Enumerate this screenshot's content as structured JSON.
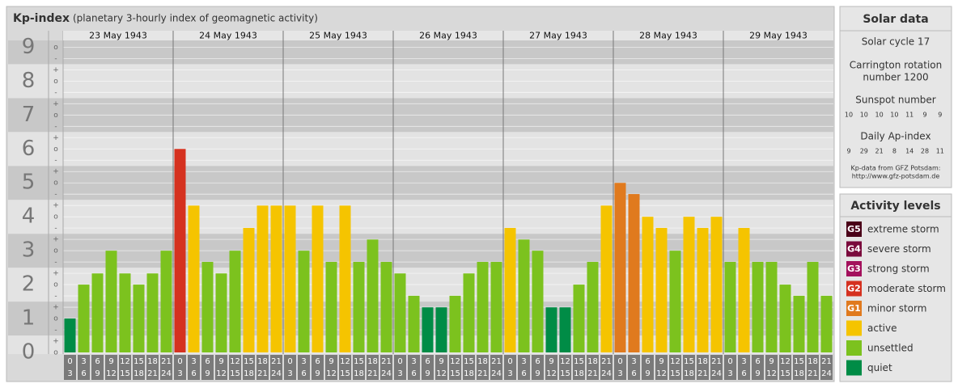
{
  "chart_data": {
    "type": "bar",
    "title": "Kp-index",
    "subtitle": "(planetary 3-hourly index of geomagnetic activity)",
    "days": [
      "23 May 1943",
      "24 May 1943",
      "25 May 1943",
      "26 May 1943",
      "27 May 1943",
      "28 May 1943",
      "29 May 1943"
    ],
    "hours": [
      {
        "from": "0",
        "to": "3"
      },
      {
        "from": "3",
        "to": "6"
      },
      {
        "from": "6",
        "to": "9"
      },
      {
        "from": "9",
        "to": "12"
      },
      {
        "from": "12",
        "to": "15"
      },
      {
        "from": "15",
        "to": "18"
      },
      {
        "from": "18",
        "to": "21"
      },
      {
        "from": "21",
        "to": "24"
      }
    ],
    "values": [
      1,
      2,
      2.33,
      3,
      2.33,
      2,
      2.33,
      3,
      6,
      4.33,
      2.67,
      2.33,
      3,
      3.67,
      4.33,
      4.33,
      4.33,
      3,
      4.33,
      2.67,
      4.33,
      2.67,
      3.33,
      2.67,
      2.33,
      1.67,
      1.33,
      1.33,
      1.67,
      2.33,
      2.67,
      2.67,
      3.67,
      3.33,
      3,
      1.33,
      1.33,
      2,
      2.67,
      4.33,
      5,
      4.67,
      4,
      3.67,
      3,
      4,
      3.67,
      4,
      2.67,
      3.67,
      2.67,
      2.67,
      2,
      1.67,
      2.67,
      1.67
    ],
    "colors": [
      "#008c46",
      "#7cc21e",
      "#7cc21e",
      "#7cc21e",
      "#7cc21e",
      "#7cc21e",
      "#7cc21e",
      "#7cc21e",
      "#d5311f",
      "#f5c400",
      "#7cc21e",
      "#7cc21e",
      "#7cc21e",
      "#f5c400",
      "#f5c400",
      "#f5c400",
      "#f5c400",
      "#7cc21e",
      "#f5c400",
      "#7cc21e",
      "#f5c400",
      "#7cc21e",
      "#7cc21e",
      "#7cc21e",
      "#7cc21e",
      "#7cc21e",
      "#008c46",
      "#008c46",
      "#7cc21e",
      "#7cc21e",
      "#7cc21e",
      "#7cc21e",
      "#f5c400",
      "#7cc21e",
      "#7cc21e",
      "#008c46",
      "#008c46",
      "#7cc21e",
      "#7cc21e",
      "#f5c400",
      "#e07a1e",
      "#e07a1e",
      "#f5c400",
      "#f5c400",
      "#7cc21e",
      "#f5c400",
      "#f5c400",
      "#f5c400",
      "#7cc21e",
      "#f5c400",
      "#7cc21e",
      "#7cc21e",
      "#7cc21e",
      "#7cc21e",
      "#7cc21e",
      "#7cc21e"
    ],
    "ylim": [
      0,
      9.2
    ],
    "yticks": [
      0,
      1,
      2,
      3,
      4,
      5,
      6,
      7,
      8,
      9
    ],
    "minor_labels": [
      "-",
      "o",
      "+"
    ]
  },
  "solar": {
    "title": "Solar data",
    "cycle": "Solar cycle 17",
    "carrington": [
      "Carrington rotation",
      "number 1200"
    ],
    "sunspot_label": "Sunspot number",
    "sunspot_values": [
      "10",
      "10",
      "10",
      "10",
      "11",
      "9",
      "9"
    ],
    "ap_label": "Daily Ap-index",
    "ap_values": [
      "9",
      "29",
      "21",
      "8",
      "14",
      "28",
      "11"
    ],
    "source": "Kp-data from GFZ Potsdam:",
    "url": "http://www.gfz-potsdam.de"
  },
  "activity": {
    "title": "Activity levels",
    "levels": [
      {
        "badge": "G5",
        "label": "extreme storm",
        "color": "#4a0018"
      },
      {
        "badge": "G4",
        "label": "severe storm",
        "color": "#7a0a3c"
      },
      {
        "badge": "G3",
        "label": "strong storm",
        "color": "#a3105c"
      },
      {
        "badge": "G2",
        "label": "moderate storm",
        "color": "#d5311f"
      },
      {
        "badge": "G1",
        "label": "minor storm",
        "color": "#e07a1e"
      },
      {
        "badge": null,
        "label": "active",
        "color": "#f5c400"
      },
      {
        "badge": null,
        "label": "unsettled",
        "color": "#7cc21e"
      },
      {
        "badge": null,
        "label": "quiet",
        "color": "#008c46"
      }
    ]
  }
}
